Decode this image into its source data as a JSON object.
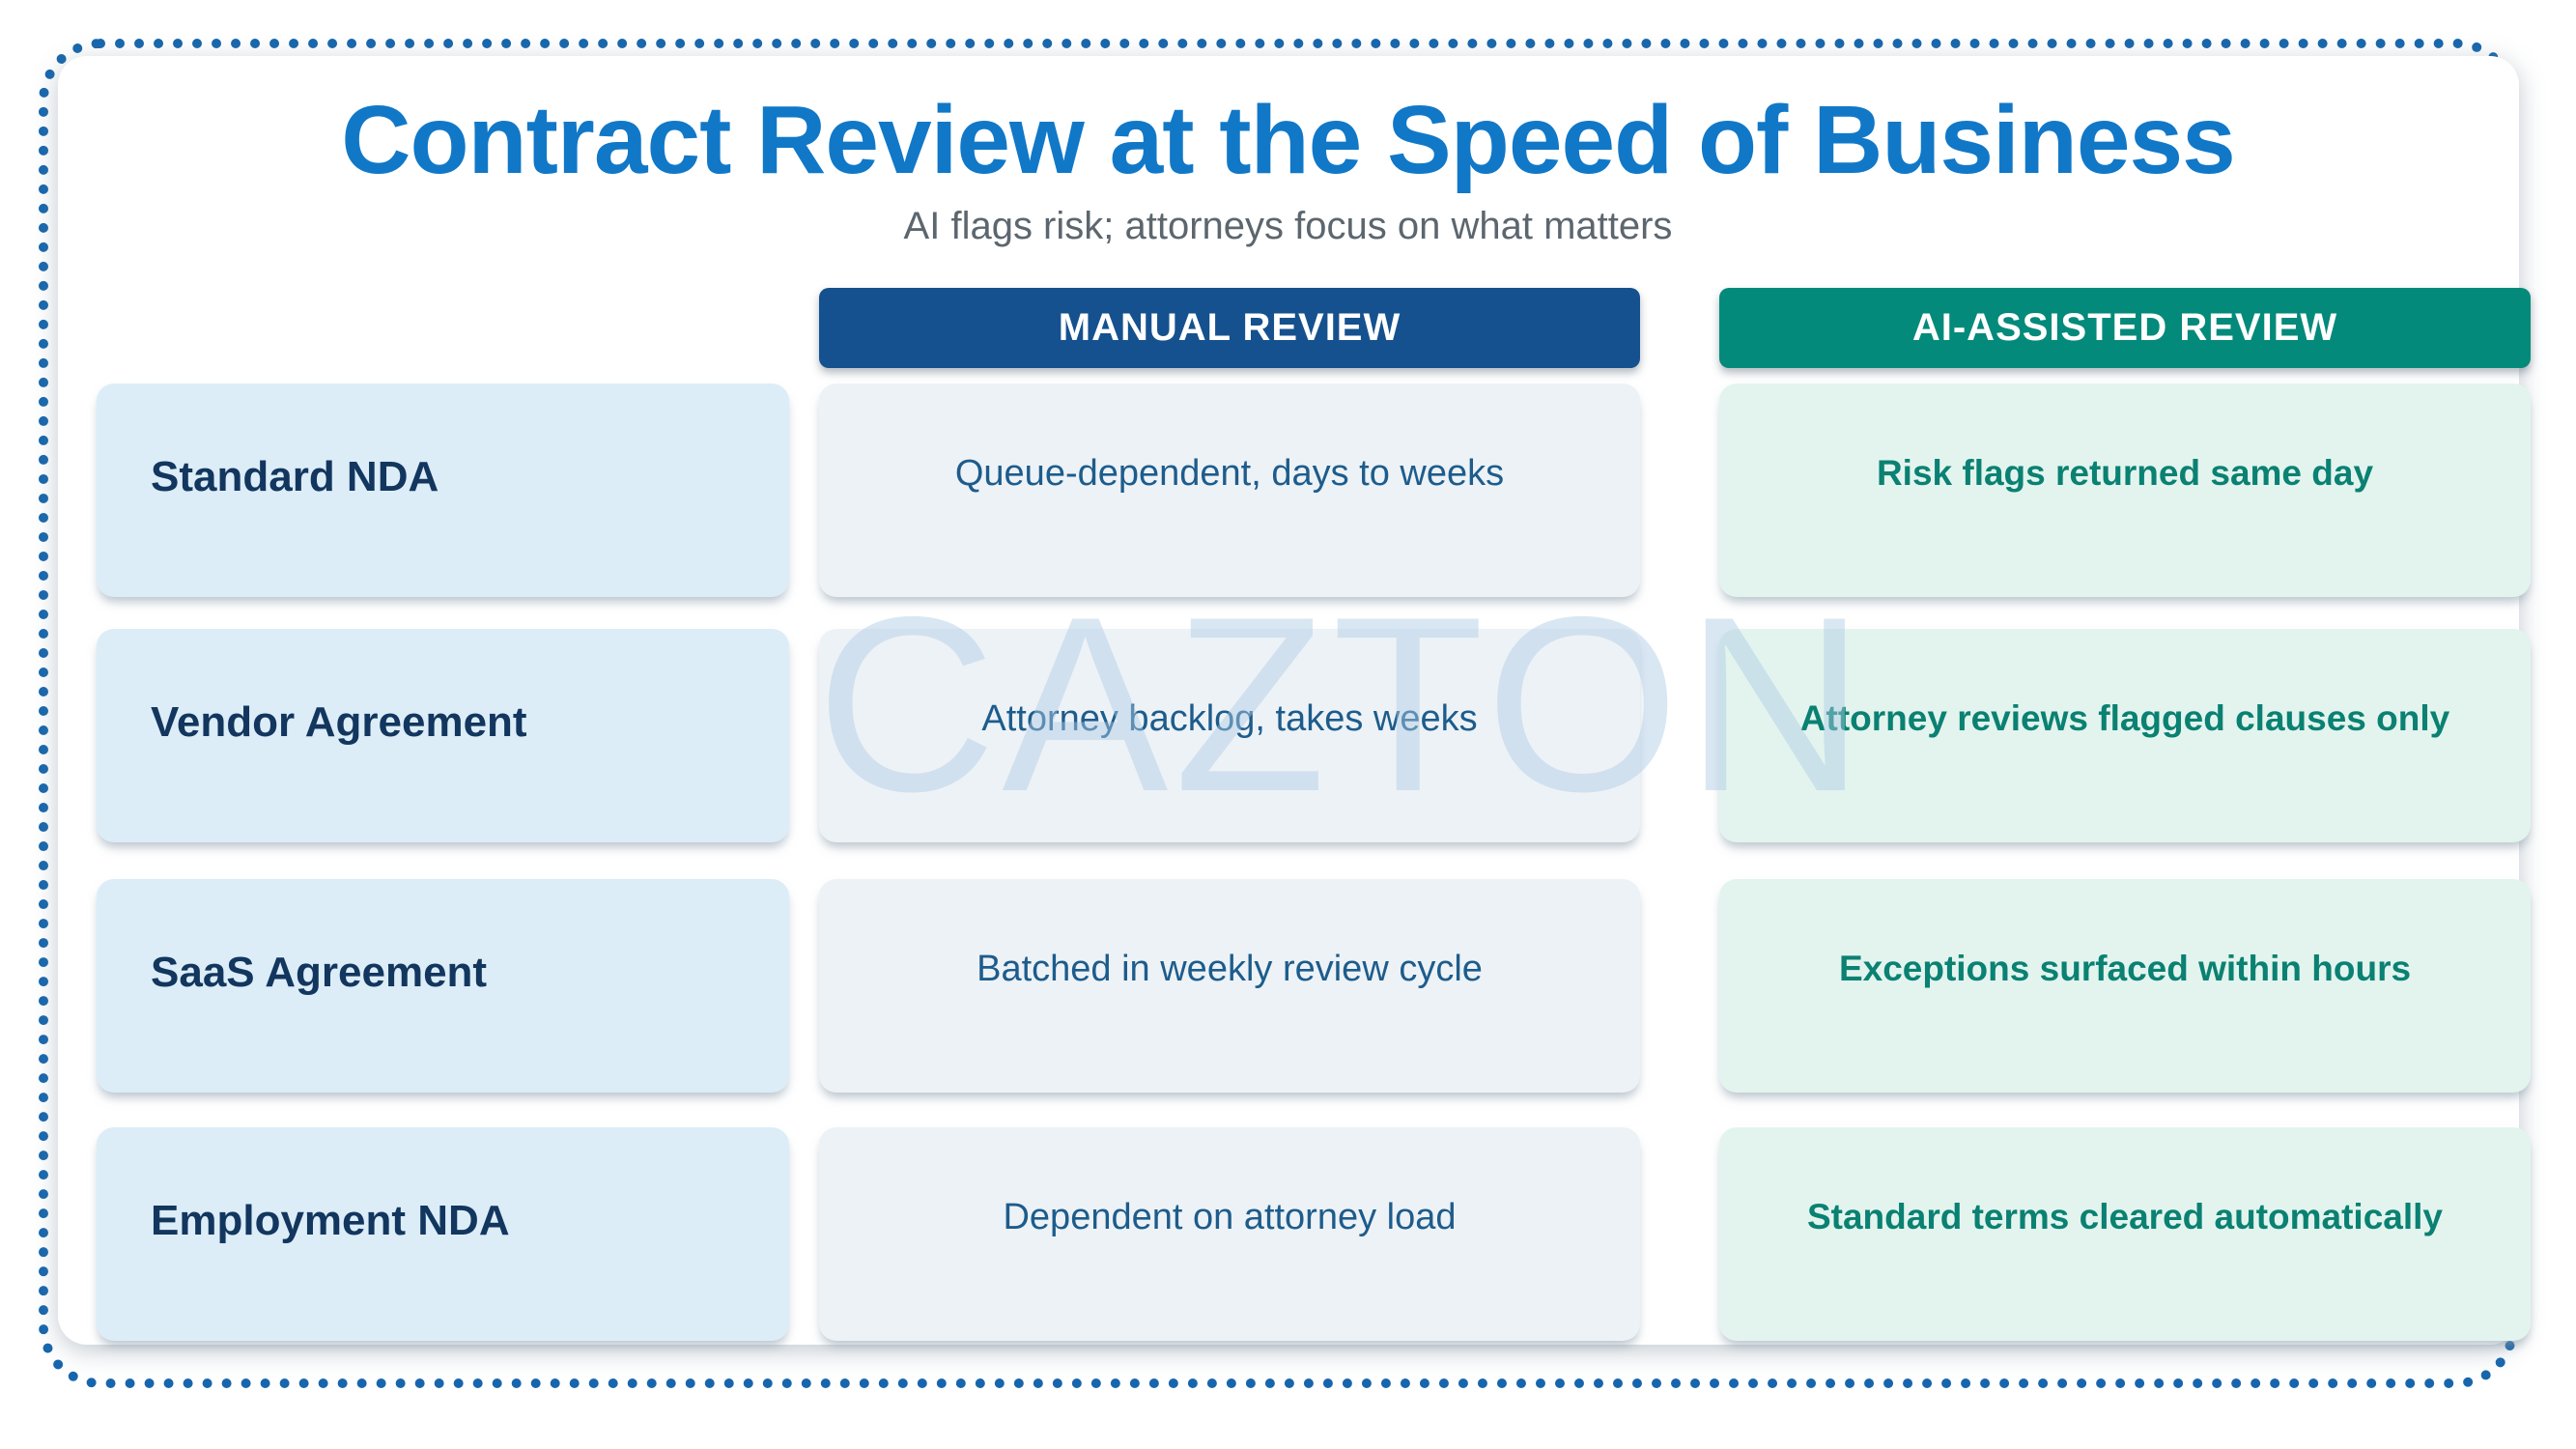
{
  "page": {
    "title": "Contract Review at the Speed of Business",
    "subtitle": "AI flags risk; attorneys focus on what matters",
    "watermark": "CAZTON"
  },
  "columns": {
    "manual_header": "MANUAL REVIEW",
    "ai_header": "AI-ASSISTED REVIEW"
  },
  "rows": [
    {
      "label": "Standard NDA",
      "manual": "Queue-dependent, days to weeks",
      "ai": "Risk flags returned same day"
    },
    {
      "label": "Vendor Agreement",
      "manual": "Attorney backlog, takes weeks",
      "ai": "Attorney reviews flagged clauses only"
    },
    {
      "label": "SaaS Agreement",
      "manual": "Batched in weekly review cycle",
      "ai": "Exceptions surfaced within hours"
    },
    {
      "label": "Employment NDA",
      "manual": "Dependent on attorney load",
      "ai": "Standard terms cleared automatically"
    }
  ],
  "colors": {
    "title_blue": "#1178c8",
    "subtitle_gray": "#5c666e",
    "manual_header_bg": "#15518e",
    "ai_header_bg": "#038a7a",
    "label_card_bg": "#dcedf8",
    "manual_card_bg": "#edf2f6",
    "ai_card_bg": "#e3f4ee",
    "label_text": "#12365e",
    "manual_text": "#1d5c8c",
    "ai_text": "#0a8172",
    "dotted_border": "#1766ad",
    "watermark": "#adcbe6"
  }
}
